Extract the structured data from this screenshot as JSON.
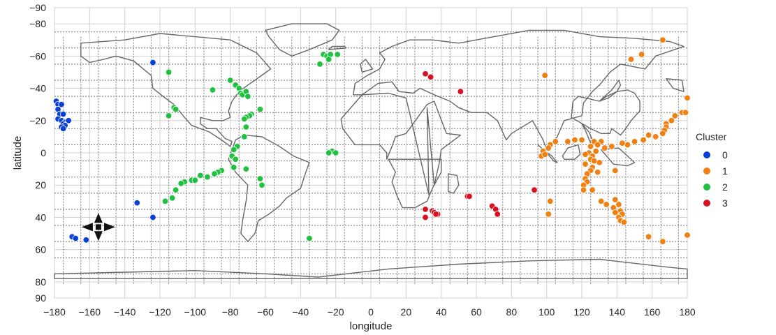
{
  "chart_data": {
    "type": "scatter",
    "xlabel": "longitude",
    "ylabel": "latitude",
    "xlim": [
      -180,
      180
    ],
    "ylim": [
      90,
      -90
    ],
    "y_inverted": true,
    "grid": true,
    "legend_placement": "right",
    "legend_title": "Cluster",
    "x_ticks": [
      -180,
      -160,
      -140,
      -120,
      -100,
      -80,
      -60,
      -40,
      -20,
      0,
      20,
      40,
      60,
      80,
      100,
      120,
      140,
      160,
      180
    ],
    "y_ticks": [
      -90,
      -80,
      -60,
      -40,
      -20,
      0,
      20,
      40,
      60,
      80,
      90
    ],
    "x_tick_labels": [
      "−180",
      "−160",
      "−140",
      "−120",
      "−100",
      "−80",
      "−60",
      "−40",
      "−20",
      "0",
      "20",
      "40",
      "60",
      "80",
      "100",
      "120",
      "140",
      "160",
      "180"
    ],
    "y_tick_labels": [
      "−90",
      "−80",
      "−60",
      "−40",
      "−20",
      "0",
      "20",
      "40",
      "60",
      "80",
      "90"
    ],
    "background_image": "world-map-outline",
    "series": [
      {
        "name": "0",
        "color": "#0a3fd8",
        "points": [
          [
            -179,
            -32
          ],
          [
            -178,
            -30
          ],
          [
            -176,
            -30
          ],
          [
            -178,
            -27
          ],
          [
            -177,
            -24
          ],
          [
            -175,
            -24
          ],
          [
            -178,
            -21
          ],
          [
            -176,
            -20
          ],
          [
            -174,
            -19
          ],
          [
            -172,
            -20
          ],
          [
            -175,
            -18
          ],
          [
            -174,
            -17
          ],
          [
            -176,
            -16
          ],
          [
            -175,
            -15
          ],
          [
            -124,
            -56
          ],
          [
            -133,
            31
          ],
          [
            -124,
            40
          ],
          [
            -170,
            52
          ],
          [
            -168,
            53
          ],
          [
            -162,
            54
          ]
        ]
      },
      {
        "name": "1",
        "color": "#f08010",
        "points": [
          [
            166,
            -70
          ],
          [
            154,
            -61
          ],
          [
            148,
            -58
          ],
          [
            99,
            -48
          ],
          [
            180,
            -34
          ],
          [
            177,
            -25
          ],
          [
            179,
            -25
          ],
          [
            173,
            -23
          ],
          [
            171,
            -20
          ],
          [
            168,
            -18
          ],
          [
            168,
            -16
          ],
          [
            167,
            -14
          ],
          [
            166,
            -12
          ],
          [
            162,
            -10
          ],
          [
            158,
            -11
          ],
          [
            155,
            -8
          ],
          [
            150,
            -7
          ],
          [
            146,
            -5
          ],
          [
            143,
            -6
          ],
          [
            131,
            -7
          ],
          [
            137,
            -4
          ],
          [
            127,
            -7
          ],
          [
            120,
            -8
          ],
          [
            116,
            -8
          ],
          [
            112,
            -7
          ],
          [
            105,
            -7
          ],
          [
            102,
            -5
          ],
          [
            101,
            -3
          ],
          [
            98,
            -1
          ],
          [
            97,
            2
          ],
          [
            99,
            1
          ],
          [
            125,
            -4
          ],
          [
            129,
            -5
          ],
          [
            133,
            -3
          ],
          [
            128,
            -1
          ],
          [
            124,
            0
          ],
          [
            122,
            1
          ],
          [
            126,
            2
          ],
          [
            125,
            4
          ],
          [
            130,
            6
          ],
          [
            127,
            5
          ],
          [
            122,
            7
          ],
          [
            126,
            9
          ],
          [
            125,
            11
          ],
          [
            129,
            12
          ],
          [
            123,
            13
          ],
          [
            139,
            11
          ],
          [
            122,
            16
          ],
          [
            123,
            18
          ],
          [
            121,
            20
          ],
          [
            121,
            23
          ],
          [
            126,
            23
          ],
          [
            102,
            30
          ],
          [
            101,
            38
          ],
          [
            131,
            30
          ],
          [
            134,
            32
          ],
          [
            139,
            29
          ],
          [
            141,
            32
          ],
          [
            138,
            34
          ],
          [
            142,
            36
          ],
          [
            139,
            37
          ],
          [
            143,
            38
          ],
          [
            141,
            40
          ],
          [
            142,
            42
          ],
          [
            144,
            43
          ],
          [
            158,
            52
          ],
          [
            166,
            55
          ],
          [
            180,
            51
          ]
        ]
      },
      {
        "name": "2",
        "color": "#20c040",
        "points": [
          [
            -27,
            -61
          ],
          [
            -25,
            -60
          ],
          [
            -23,
            -61
          ],
          [
            -19,
            -61
          ],
          [
            -24,
            -58
          ],
          [
            -29,
            -55
          ],
          [
            -115,
            -50
          ],
          [
            -90,
            -39
          ],
          [
            -80,
            -45
          ],
          [
            -77,
            -42
          ],
          [
            -75,
            -40
          ],
          [
            -74,
            -37
          ],
          [
            -73,
            -36
          ],
          [
            -71,
            -38
          ],
          [
            -70,
            -35
          ],
          [
            -112,
            -28
          ],
          [
            -111,
            -27
          ],
          [
            -63,
            -27
          ],
          [
            -68,
            -24
          ],
          [
            -69,
            -23
          ],
          [
            -71,
            -22
          ],
          [
            -72,
            -21
          ],
          [
            -115,
            -23
          ],
          [
            -71,
            -16
          ],
          [
            -72,
            -10
          ],
          [
            -76,
            -4
          ],
          [
            -78,
            -2
          ],
          [
            -79,
            2
          ],
          [
            -77,
            4
          ],
          [
            -22,
            -1
          ],
          [
            -24,
            0
          ],
          [
            -20,
            0
          ],
          [
            -71,
            10
          ],
          [
            -78,
            9
          ],
          [
            -85,
            11
          ],
          [
            -87,
            12
          ],
          [
            -89,
            13
          ],
          [
            -93,
            15
          ],
          [
            -97,
            14
          ],
          [
            -102,
            17
          ],
          [
            -100,
            17
          ],
          [
            -106,
            18
          ],
          [
            -108,
            19
          ],
          [
            -111,
            23
          ],
          [
            -113,
            28
          ],
          [
            -117,
            30
          ],
          [
            -63,
            16
          ],
          [
            -62,
            20
          ],
          [
            -35,
            53
          ]
        ]
      },
      {
        "name": "3",
        "color": "#d81020",
        "points": [
          [
            31,
            -49
          ],
          [
            34,
            -47
          ],
          [
            51,
            -38
          ],
          [
            55,
            27
          ],
          [
            56,
            27
          ],
          [
            93,
            23
          ],
          [
            69,
            33
          ],
          [
            71,
            35
          ],
          [
            72,
            38
          ],
          [
            31,
            35
          ],
          [
            35,
            36
          ],
          [
            36,
            37
          ],
          [
            38,
            38
          ],
          [
            31,
            40
          ],
          [
            36,
            37
          ],
          [
            37,
            38
          ]
        ]
      }
    ]
  }
}
